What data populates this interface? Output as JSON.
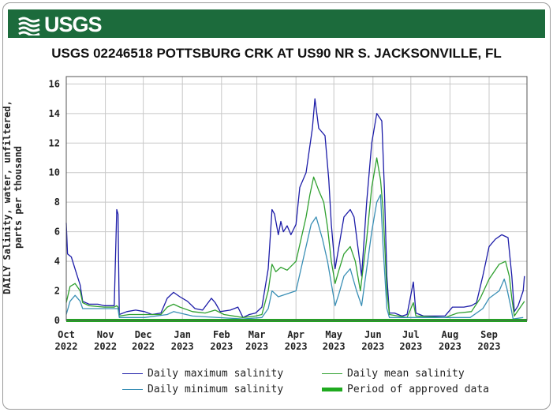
{
  "header": {
    "agency": "USGS"
  },
  "chart_data": {
    "type": "line",
    "title": "USGS 02246518 POTTSBURG CRK AT US90 NR S. JACKSONVILLE, FL",
    "ylabel_lines": [
      "DAILY Salinity, water, unfiltered,",
      "parts per thousand"
    ],
    "xlabel": "",
    "ylim": [
      0,
      16.5
    ],
    "yticks": [
      0,
      2,
      4,
      6,
      8,
      10,
      12,
      14,
      16
    ],
    "xlim_days": [
      0,
      365
    ],
    "xticks": [
      {
        "day": 0,
        "month": "Oct",
        "year": "2022"
      },
      {
        "day": 31,
        "month": "Nov",
        "year": "2022"
      },
      {
        "day": 61,
        "month": "Dec",
        "year": "2022"
      },
      {
        "day": 92,
        "month": "Jan",
        "year": "2023"
      },
      {
        "day": 123,
        "month": "Feb",
        "year": "2023"
      },
      {
        "day": 151,
        "month": "Mar",
        "year": "2023"
      },
      {
        "day": 182,
        "month": "Apr",
        "year": "2023"
      },
      {
        "day": 212,
        "month": "May",
        "year": "2023"
      },
      {
        "day": 243,
        "month": "Jun",
        "year": "2023"
      },
      {
        "day": 273,
        "month": "Jul",
        "year": "2023"
      },
      {
        "day": 304,
        "month": "Aug",
        "year": "2023"
      },
      {
        "day": 335,
        "month": "Sep",
        "year": "2023"
      }
    ],
    "grid": true,
    "series": [
      {
        "name": "Daily maximum salinity",
        "color": "#1c1ca8",
        "points": [
          [
            0,
            6.6
          ],
          [
            1,
            4.5
          ],
          [
            4,
            4.3
          ],
          [
            8,
            3.2
          ],
          [
            11,
            2.4
          ],
          [
            13,
            1.3
          ],
          [
            18,
            1.1
          ],
          [
            25,
            1.1
          ],
          [
            30,
            1.0
          ],
          [
            38,
            1.0
          ],
          [
            40,
            7.5
          ],
          [
            41,
            7.2
          ],
          [
            42,
            0.4
          ],
          [
            48,
            0.6
          ],
          [
            55,
            0.7
          ],
          [
            62,
            0.6
          ],
          [
            68,
            0.4
          ],
          [
            75,
            0.5
          ],
          [
            80,
            1.5
          ],
          [
            85,
            1.9
          ],
          [
            90,
            1.6
          ],
          [
            96,
            1.3
          ],
          [
            102,
            0.8
          ],
          [
            108,
            0.7
          ],
          [
            115,
            1.5
          ],
          [
            118,
            1.2
          ],
          [
            122,
            0.6
          ],
          [
            130,
            0.7
          ],
          [
            136,
            0.9
          ],
          [
            140,
            0.2
          ],
          [
            145,
            0.4
          ],
          [
            150,
            0.5
          ],
          [
            155,
            0.9
          ],
          [
            160,
            3.5
          ],
          [
            163,
            7.5
          ],
          [
            165,
            7.2
          ],
          [
            168,
            5.8
          ],
          [
            170,
            6.7
          ],
          [
            172,
            6.0
          ],
          [
            175,
            6.4
          ],
          [
            178,
            5.8
          ],
          [
            182,
            6.5
          ],
          [
            185,
            9.0
          ],
          [
            190,
            10.0
          ],
          [
            195,
            13.0
          ],
          [
            197,
            15.0
          ],
          [
            200,
            13.0
          ],
          [
            205,
            12.5
          ],
          [
            208,
            9.5
          ],
          [
            210,
            6.5
          ],
          [
            213,
            3.5
          ],
          [
            216,
            5.0
          ],
          [
            220,
            7.0
          ],
          [
            225,
            7.5
          ],
          [
            228,
            7.0
          ],
          [
            231,
            5.0
          ],
          [
            234,
            3.0
          ],
          [
            238,
            8.0
          ],
          [
            242,
            12.0
          ],
          [
            246,
            14.0
          ],
          [
            250,
            13.5
          ],
          [
            252,
            9.0
          ],
          [
            254,
            3.0
          ],
          [
            256,
            0.5
          ],
          [
            260,
            0.5
          ],
          [
            266,
            0.3
          ],
          [
            270,
            0.4
          ],
          [
            275,
            2.6
          ],
          [
            277,
            0.5
          ],
          [
            283,
            0.3
          ],
          [
            290,
            0.3
          ],
          [
            300,
            0.3
          ],
          [
            306,
            0.9
          ],
          [
            315,
            0.9
          ],
          [
            321,
            1.0
          ],
          [
            325,
            1.2
          ],
          [
            330,
            3.0
          ],
          [
            335,
            5.0
          ],
          [
            340,
            5.5
          ],
          [
            345,
            5.8
          ],
          [
            350,
            5.6
          ],
          [
            353,
            3.0
          ],
          [
            355,
            0.6
          ],
          [
            358,
            1.0
          ],
          [
            362,
            2.0
          ],
          [
            363,
            3.0
          ]
        ]
      },
      {
        "name": "Daily mean salinity",
        "color": "#2fa02f",
        "points": [
          [
            0,
            1.2
          ],
          [
            3,
            2.3
          ],
          [
            7,
            2.5
          ],
          [
            11,
            2.0
          ],
          [
            13,
            1.2
          ],
          [
            18,
            1.0
          ],
          [
            30,
            0.9
          ],
          [
            38,
            0.9
          ],
          [
            40,
            1.0
          ],
          [
            41,
            0.9
          ],
          [
            42,
            0.3
          ],
          [
            50,
            0.4
          ],
          [
            62,
            0.4
          ],
          [
            75,
            0.4
          ],
          [
            80,
            0.9
          ],
          [
            85,
            1.1
          ],
          [
            90,
            0.9
          ],
          [
            100,
            0.6
          ],
          [
            110,
            0.5
          ],
          [
            118,
            0.7
          ],
          [
            125,
            0.4
          ],
          [
            140,
            0.2
          ],
          [
            150,
            0.3
          ],
          [
            155,
            0.4
          ],
          [
            160,
            2.0
          ],
          [
            163,
            3.8
          ],
          [
            166,
            3.3
          ],
          [
            170,
            3.6
          ],
          [
            175,
            3.4
          ],
          [
            182,
            4.0
          ],
          [
            186,
            5.5
          ],
          [
            190,
            7.0
          ],
          [
            193,
            8.5
          ],
          [
            196,
            9.7
          ],
          [
            200,
            8.8
          ],
          [
            204,
            8.0
          ],
          [
            207,
            6.3
          ],
          [
            210,
            4.0
          ],
          [
            213,
            2.5
          ],
          [
            216,
            3.4
          ],
          [
            220,
            4.5
          ],
          [
            225,
            5.0
          ],
          [
            229,
            4.0
          ],
          [
            233,
            2.0
          ],
          [
            238,
            5.5
          ],
          [
            242,
            9.0
          ],
          [
            246,
            11.0
          ],
          [
            249,
            9.5
          ],
          [
            251,
            7.5
          ],
          [
            254,
            2.0
          ],
          [
            256,
            0.4
          ],
          [
            270,
            0.2
          ],
          [
            275,
            1.2
          ],
          [
            277,
            0.3
          ],
          [
            300,
            0.2
          ],
          [
            310,
            0.5
          ],
          [
            321,
            0.6
          ],
          [
            328,
            1.5
          ],
          [
            335,
            2.8
          ],
          [
            343,
            3.8
          ],
          [
            348,
            4.0
          ],
          [
            351,
            3.0
          ],
          [
            353,
            1.5
          ],
          [
            355,
            0.3
          ],
          [
            363,
            1.3
          ]
        ]
      },
      {
        "name": "Daily minimum salinity",
        "color": "#3a8fb5",
        "points": [
          [
            0,
            0.4
          ],
          [
            3,
            1.3
          ],
          [
            7,
            1.7
          ],
          [
            11,
            1.3
          ],
          [
            13,
            0.8
          ],
          [
            20,
            0.8
          ],
          [
            38,
            0.8
          ],
          [
            41,
            0.8
          ],
          [
            42,
            0.2
          ],
          [
            62,
            0.2
          ],
          [
            80,
            0.4
          ],
          [
            85,
            0.6
          ],
          [
            100,
            0.3
          ],
          [
            140,
            0.1
          ],
          [
            155,
            0.2
          ],
          [
            160,
            0.8
          ],
          [
            163,
            2.0
          ],
          [
            168,
            1.6
          ],
          [
            175,
            1.8
          ],
          [
            182,
            2.0
          ],
          [
            186,
            3.5
          ],
          [
            190,
            5.0
          ],
          [
            194,
            6.5
          ],
          [
            198,
            7.0
          ],
          [
            203,
            5.5
          ],
          [
            207,
            4.0
          ],
          [
            210,
            2.5
          ],
          [
            213,
            1.0
          ],
          [
            216,
            1.8
          ],
          [
            220,
            3.0
          ],
          [
            225,
            3.5
          ],
          [
            230,
            2.0
          ],
          [
            234,
            1.0
          ],
          [
            238,
            3.5
          ],
          [
            242,
            6.0
          ],
          [
            246,
            8.0
          ],
          [
            249,
            8.5
          ],
          [
            251,
            5.0
          ],
          [
            254,
            0.8
          ],
          [
            256,
            0.2
          ],
          [
            275,
            0.2
          ],
          [
            320,
            0.2
          ],
          [
            330,
            0.8
          ],
          [
            335,
            1.5
          ],
          [
            343,
            2.0
          ],
          [
            347,
            2.8
          ],
          [
            349,
            2.2
          ],
          [
            352,
            1.0
          ],
          [
            354,
            0.1
          ],
          [
            362,
            0.2
          ]
        ]
      },
      {
        "name": "Period of approved data",
        "color": "#1faa1f",
        "points": [
          [
            0,
            0
          ],
          [
            365,
            0
          ]
        ]
      }
    ]
  },
  "legend": [
    {
      "label": "Daily maximum salinity",
      "color": "#1c1ca8",
      "thick": false
    },
    {
      "label": "Daily mean salinity",
      "color": "#2fa02f",
      "thick": false
    },
    {
      "label": "Daily minimum salinity",
      "color": "#3a8fb5",
      "thick": false
    },
    {
      "label": "Period of approved data",
      "color": "#1faa1f",
      "thick": true
    }
  ]
}
